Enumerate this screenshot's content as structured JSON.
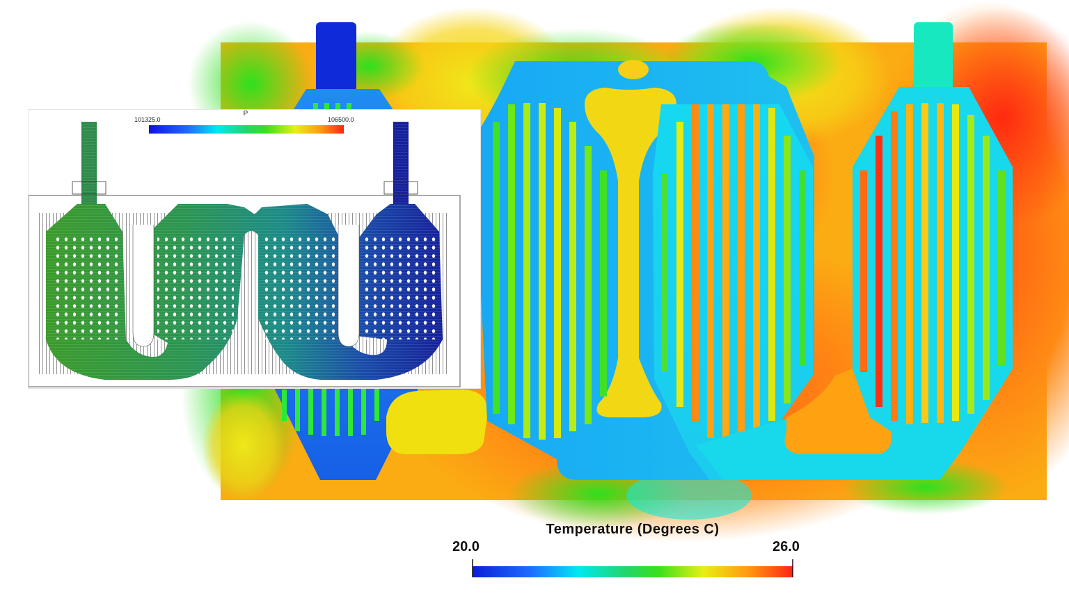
{
  "main_plot": {
    "legend": {
      "title": "Temperature (Degrees C)",
      "min_label": "20.0",
      "max_label": "26.0",
      "colormap": [
        "#0a1fd8",
        "#1e6bff",
        "#00e8f0",
        "#22d66a",
        "#39e01b",
        "#e8ef14",
        "#ff9a10",
        "#ff2414"
      ]
    }
  },
  "inset_plot": {
    "legend": {
      "title": "P",
      "min_label": "101325.0",
      "max_label": "106500.0",
      "colormap": [
        "#1010e8",
        "#1e6bff",
        "#00e8f0",
        "#22d66a",
        "#39e01b",
        "#e8ef14",
        "#ff9a10",
        "#ff2414"
      ]
    }
  }
}
